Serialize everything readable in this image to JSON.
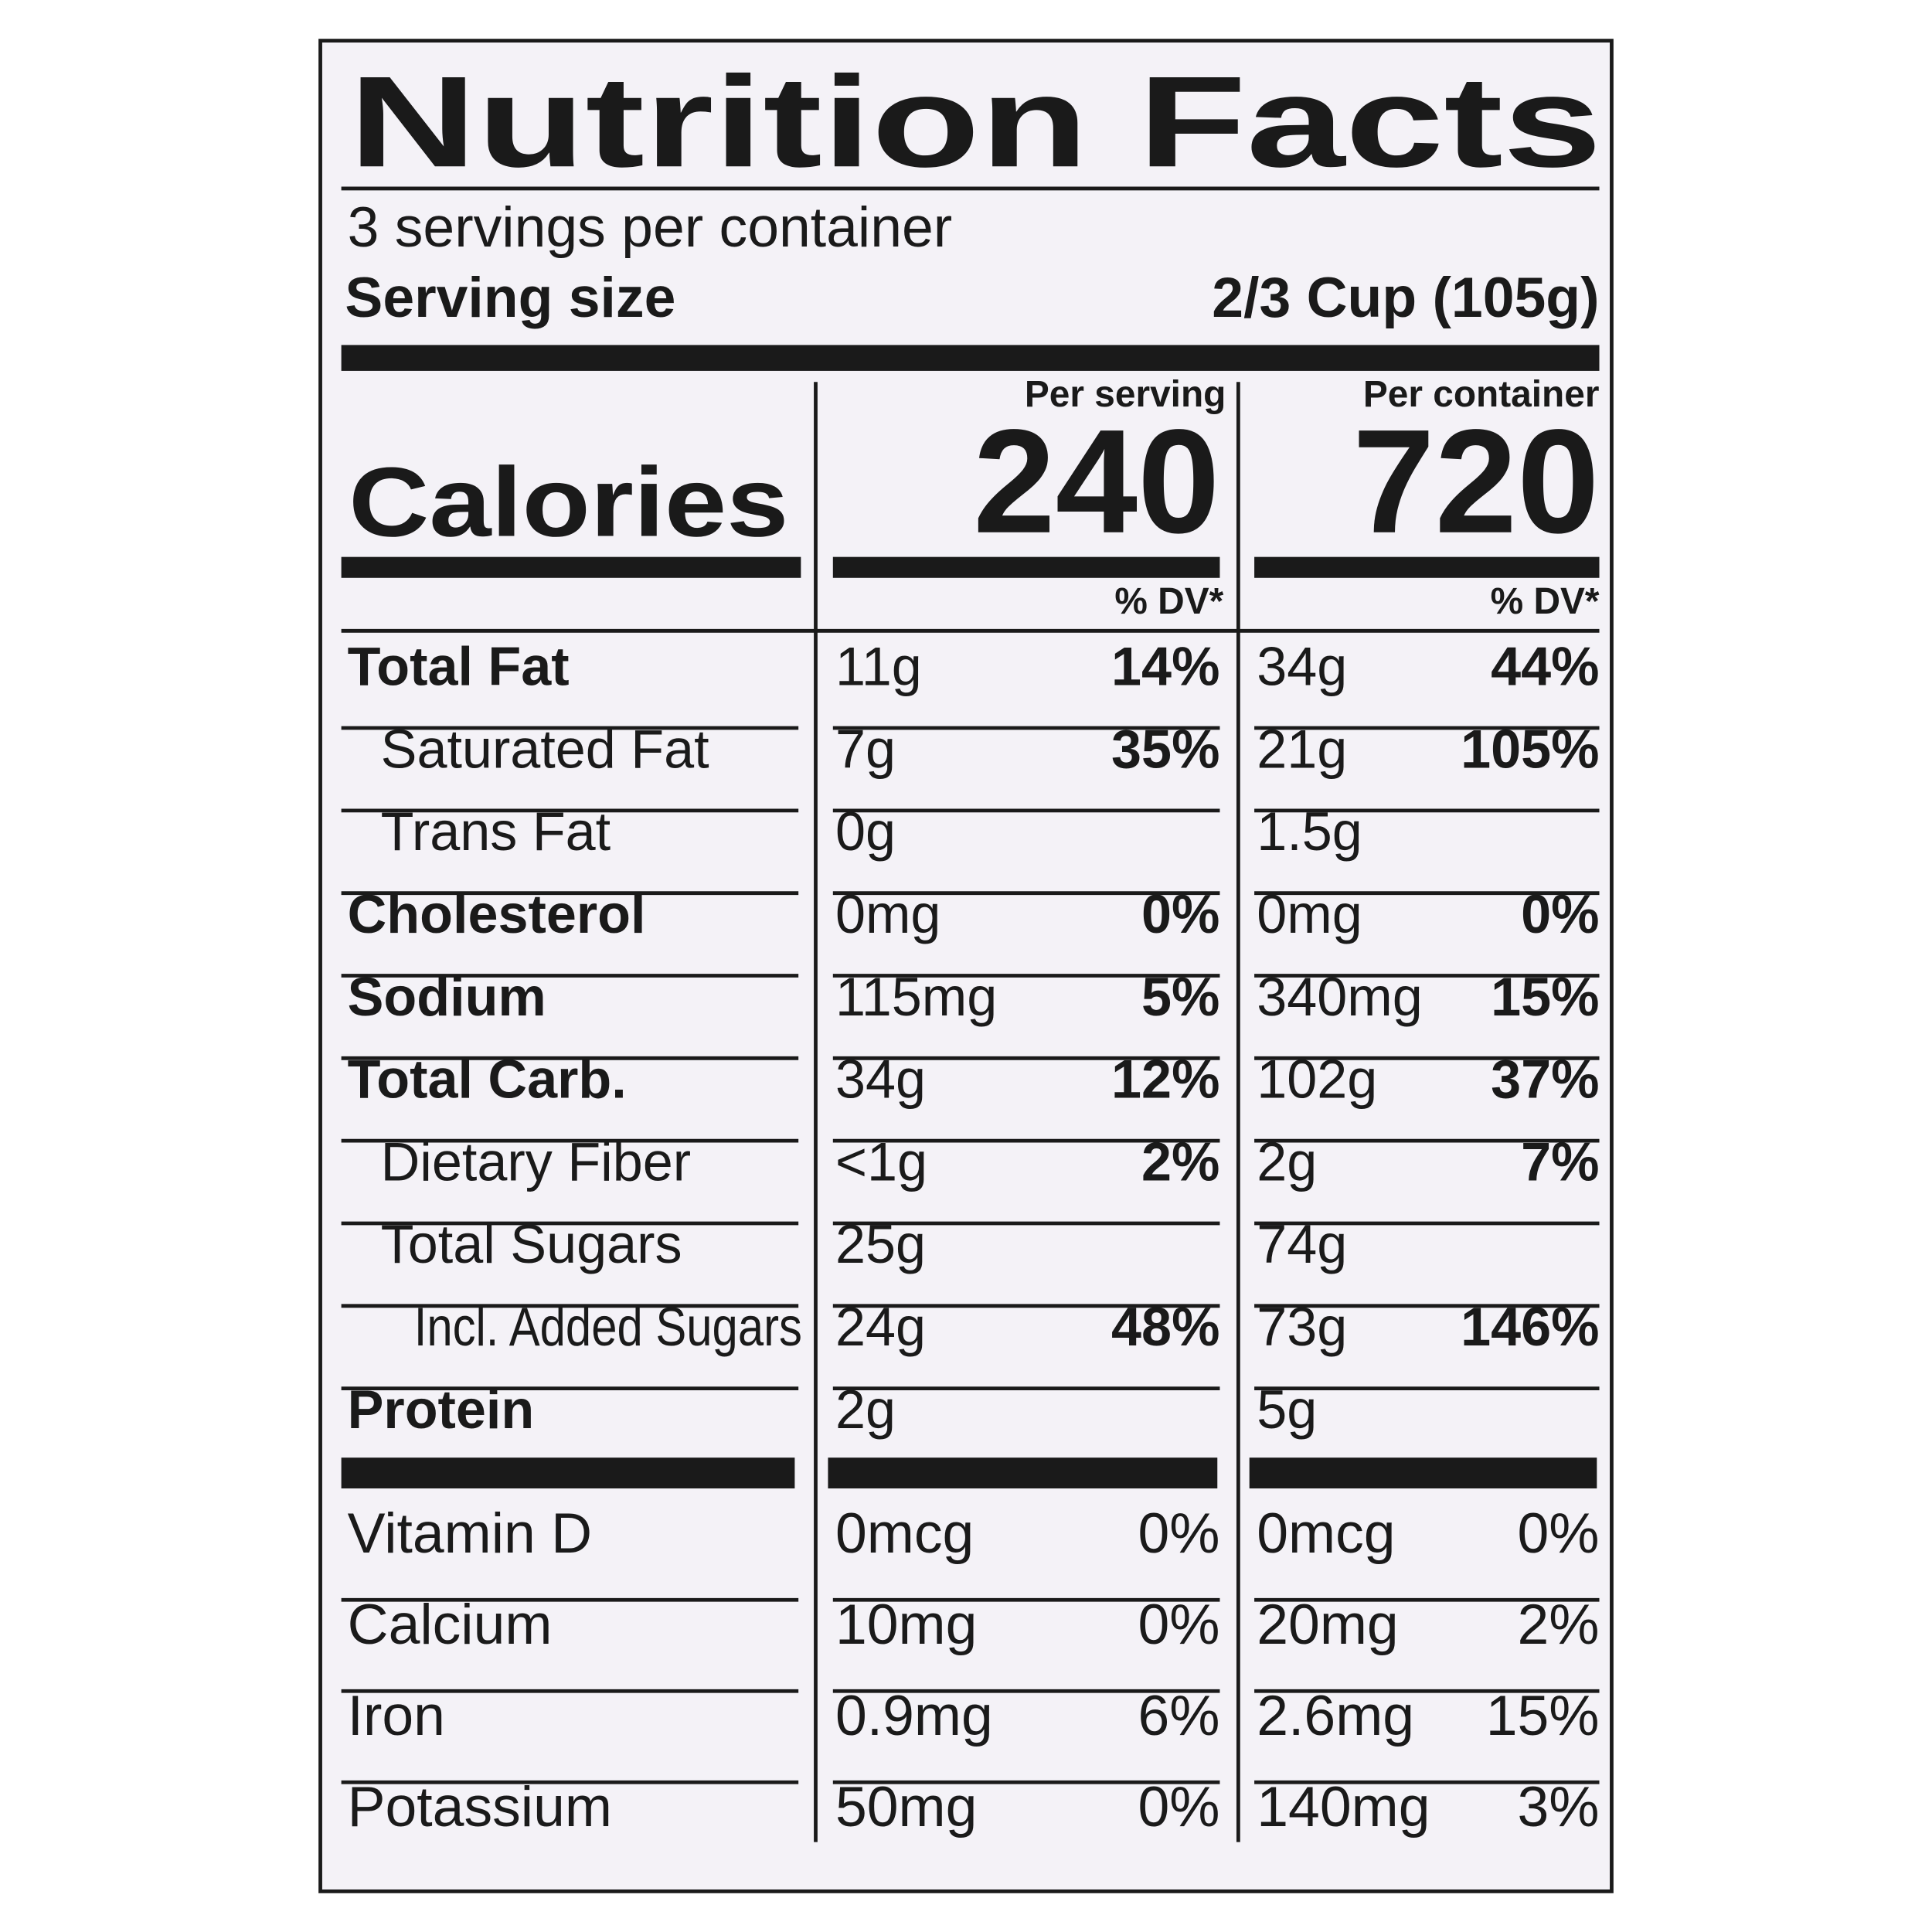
{
  "title": "Nutrition Facts",
  "servings": "3 servings per container",
  "serving_size": {
    "label": "Serving size",
    "value": "2/3 Cup (105g)"
  },
  "calories": {
    "label": "Calories",
    "per_serving": {
      "header": "Per serving",
      "value": "240"
    },
    "per_container": {
      "header": "Per container",
      "value": "720"
    }
  },
  "dv_header": [
    "% DV*",
    "% DV*"
  ],
  "rows": [
    [
      "Total Fat",
      "11g",
      "14%",
      "34g",
      "44%"
    ],
    [
      "Saturated Fat",
      "7g",
      "35%",
      "21g",
      "105%"
    ],
    [
      "Trans Fat",
      "0g",
      null,
      "1.5g",
      null
    ],
    [
      "Cholesterol",
      "0mg",
      "0%",
      "0mg",
      "0%"
    ],
    [
      "Sodium",
      "115mg",
      "5%",
      "340mg",
      "15%"
    ],
    [
      "Total Carb.",
      "34g",
      "12%",
      "102g",
      "37%"
    ],
    [
      "Dietary Fiber",
      "<1g",
      "2%",
      "2g",
      "7%"
    ],
    [
      "Total Sugars",
      "25g",
      null,
      "74g",
      null
    ],
    [
      "Incl. Added Sugars",
      "24g",
      "48%",
      "73g",
      "146%"
    ],
    [
      "Protein",
      "2g",
      null,
      "5g",
      null
    ]
  ],
  "vitamins": [
    [
      "Vitamin D",
      "0mcg",
      "0%",
      "0mcg",
      "0%"
    ],
    [
      "Calcium",
      "10mg",
      "0%",
      "20mg",
      "2%"
    ],
    [
      "Iron",
      "0.9mg",
      "6%",
      "2.6mg",
      "15%"
    ],
    [
      "Potassium",
      "50mg",
      "0%",
      "140mg",
      "3%"
    ]
  ]
}
